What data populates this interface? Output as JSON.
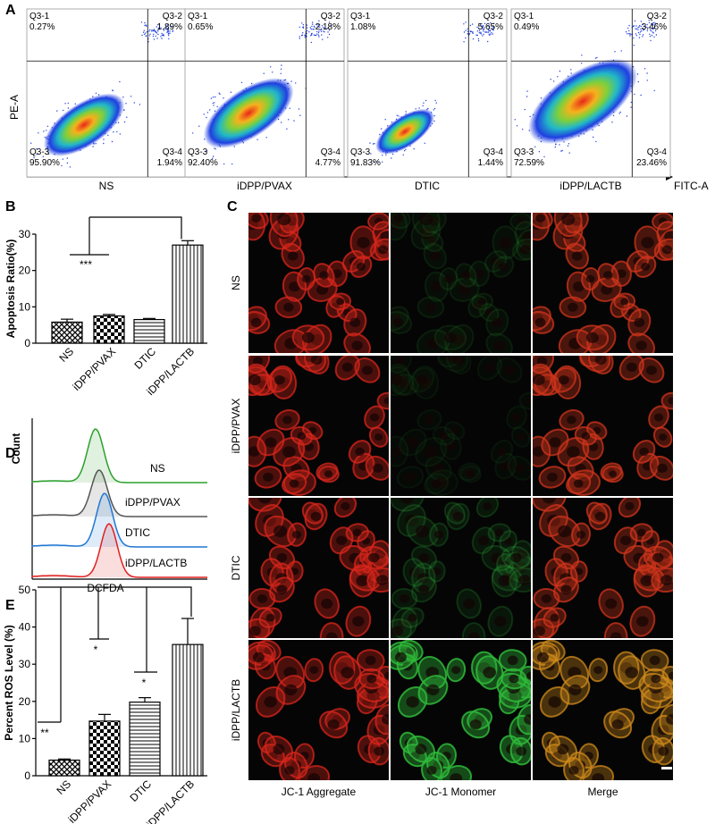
{
  "panel_labels": [
    "A",
    "B",
    "C",
    "D",
    "E"
  ],
  "flow": {
    "y_label": "PE-A",
    "x_label": "FITC-A",
    "plots": [
      {
        "name": "NS",
        "quadrants": [
          {
            "label": "Q3-1",
            "value": "0.27%"
          },
          {
            "label": "Q3-2",
            "value": "1.89%"
          },
          {
            "label": "Q3-3",
            "value": "95.90%"
          },
          {
            "label": "Q3-4",
            "value": "1.94%"
          }
        ]
      },
      {
        "name": "iDPP/PVAX",
        "quadrants": [
          {
            "label": "Q3-1",
            "value": "0.65%"
          },
          {
            "label": "Q3-2",
            "value": "2.18%"
          },
          {
            "label": "Q3-3",
            "value": "92.40%"
          },
          {
            "label": "Q3-4",
            "value": "4.77%"
          }
        ]
      },
      {
        "name": "DTIC",
        "quadrants": [
          {
            "label": "Q3-1",
            "value": "1.08%"
          },
          {
            "label": "Q3-2",
            "value": "5.65%"
          },
          {
            "label": "Q3-3",
            "value": "91.83%"
          },
          {
            "label": "Q3-4",
            "value": "1.44%"
          }
        ]
      },
      {
        "name": "iDPP/LACTB",
        "quadrants": [
          {
            "label": "Q3-1",
            "value": "0.49%"
          },
          {
            "label": "Q3-2",
            "value": "3.46%"
          },
          {
            "label": "Q3-3",
            "value": "72.59%"
          },
          {
            "label": "Q3-4",
            "value": "23.46%"
          }
        ]
      }
    ]
  },
  "chart_data": [
    {
      "type": "bar",
      "y_label": "Apoptosis Ratio(%)",
      "categories": [
        "NS",
        "iDPP/PVAX",
        "DTIC",
        "iDPP/LACTB"
      ],
      "values": [
        5.8,
        7.5,
        6.5,
        27
      ],
      "errors": [
        0.8,
        0.4,
        0.3,
        1.2
      ],
      "color": "#000000",
      "ylim": [
        0,
        30
      ],
      "yticks": [
        0,
        10,
        20,
        30
      ],
      "annotations": [
        "***"
      ]
    },
    {
      "type": "bar",
      "y_label": "Percent ROS Level (%)",
      "categories": [
        "NS",
        "iDPP/PVAX",
        "DTIC",
        "iDPP/LACTB"
      ],
      "values": [
        4.2,
        14.7,
        19.8,
        35.3
      ],
      "errors": [
        0.3,
        1.8,
        1.2,
        7
      ],
      "color": "#000000",
      "ylim": [
        0,
        50
      ],
      "yticks": [
        0,
        10,
        20,
        30,
        40,
        50
      ],
      "annotations": [
        "**",
        "*",
        "*"
      ]
    }
  ],
  "histogram": {
    "y_label": "Count",
    "x_label": "DCFDA",
    "series": [
      {
        "name": "NS",
        "color": "#2ca02c"
      },
      {
        "name": "iDPP/PVAX",
        "color": "#555555"
      },
      {
        "name": "DTIC",
        "color": "#1f77d4"
      },
      {
        "name": "iDPP/LACTB",
        "color": "#e02020"
      }
    ]
  },
  "microscopy": {
    "rows": [
      "NS",
      "iDPP/PVAX",
      "DTIC",
      "iDPP/LACTB"
    ],
    "columns": [
      "JC-1 Aggregate",
      "JC-1 Monomer",
      "Merge"
    ]
  }
}
